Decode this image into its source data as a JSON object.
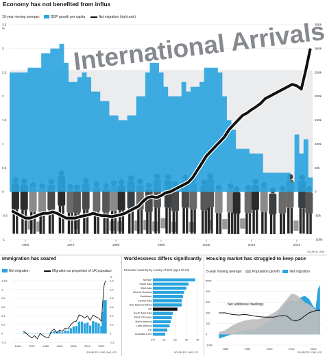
{
  "headline": "Economy has not benefited from influx",
  "main": {
    "legend_prefix": "10-year moving average:",
    "legend_gdp": "GDP growth per capita",
    "legend_migration": "Net migration (right axis)",
    "photo_text": "International Arrivals",
    "source": "SOURCE: ONS"
  },
  "colors": {
    "blue": "#2aa4de",
    "black": "#111111",
    "grey": "#bdbdbd",
    "label_bg": "#ffffff"
  },
  "panels": {
    "immigration": {
      "title": "Immigration has soared",
      "legend_net": "Net migration",
      "legend_prop": "Migration as proportion of UK populace",
      "source": "SOURCES: ONS, BoE, IFS"
    },
    "worklessness": {
      "title": "Worklessness differs significantly",
      "subtitle": "Economic inactivity by country of birth (aged 20-64)",
      "source": "SOURCES: ONS, IFS"
    },
    "housing": {
      "title": "Housing market has struggled to keep pace",
      "legend_prefix": "5-year moving average:",
      "legend_pop": "Population growth",
      "legend_net": "Net migration",
      "annotation": "Net additional dwellings",
      "source": "SOURCES: ONS, IFS"
    }
  },
  "chart_data": [
    {
      "type": "bar",
      "title": "",
      "x": [
        1957,
        1958,
        1959,
        1960,
        1961,
        1962,
        1963,
        1964,
        1965,
        1966,
        1967,
        1968,
        1969,
        1970,
        1971,
        1972,
        1973,
        1974,
        1975,
        1976,
        1977,
        1978,
        1979,
        1980,
        1981,
        1982,
        1983,
        1984,
        1985,
        1986,
        1987,
        1988,
        1989,
        1990,
        1991,
        1992,
        1993,
        1994,
        1995,
        1996,
        1997,
        1998,
        1999,
        2000,
        2001,
        2002,
        2003,
        2004,
        2005,
        2006,
        2007,
        2008,
        2009,
        2010,
        2011,
        2012,
        2013,
        2014,
        2015,
        2016,
        2017,
        2018,
        2019,
        2020,
        2021,
        2022,
        2023
      ],
      "series": [
        {
          "name": "GDP growth per capita",
          "axis": "left",
          "values": [
            2.5,
            2.5,
            2.5,
            2.5,
            2.6,
            2.6,
            2.6,
            2.9,
            2.9,
            3.0,
            3.0,
            3.1,
            2.7,
            2.3,
            2.3,
            2.4,
            2.5,
            2.4,
            2.1,
            2.1,
            1.9,
            1.9,
            1.6,
            1.6,
            1.5,
            1.5,
            1.6,
            1.6,
            2.0,
            2.0,
            2.5,
            2.7,
            2.7,
            2.5,
            2.2,
            2.0,
            2.0,
            2.0,
            2.3,
            2.1,
            2.2,
            2.2,
            2.3,
            2.6,
            2.6,
            2.6,
            2.5,
            2.0,
            1.5,
            1.3,
            0.9,
            0.9,
            0.9,
            0.8,
            0.8,
            0.8,
            0.4,
            0.4,
            0.4,
            0.4,
            0.4,
            0.4,
            0.2,
            1.2,
            0.8,
            1.1,
            0.3
          ]
        },
        {
          "name": "Net migration",
          "axis": "right",
          "values": [
            -40,
            -45,
            -50,
            -55,
            -55,
            -52,
            -48,
            -45,
            -45,
            -42,
            -45,
            -50,
            -55,
            -55,
            -55,
            -52,
            -50,
            -48,
            -45,
            -48,
            -50,
            -50,
            -52,
            -50,
            -48,
            -45,
            -40,
            -35,
            -30,
            -20,
            -12,
            -10,
            -12,
            -8,
            -2,
            0,
            5,
            10,
            15,
            20,
            30,
            45,
            60,
            75,
            85,
            95,
            105,
            115,
            130,
            140,
            150,
            160,
            165,
            172,
            178,
            185,
            195,
            200,
            205,
            210,
            215,
            220,
            225,
            222,
            215,
            255,
            300
          ]
        }
      ],
      "ylim_left": [
        -1,
        3.5
      ],
      "ylim_right": [
        -100,
        350
      ],
      "y_ticks_left": [
        "-1",
        "-0.5",
        "0",
        "0.5",
        "1",
        "1.5",
        "2",
        "2.5",
        "3",
        "3.5"
      ],
      "y_unit_left": "%",
      "y_ticks_right": [
        "-100k",
        "-50k",
        "0",
        "50k",
        "100k",
        "150k",
        "200k",
        "250k",
        "300k",
        "350k"
      ],
      "x_ticks": [
        "1960",
        "1970",
        "1980",
        "1990",
        "2000",
        "2010",
        "2020"
      ]
    },
    {
      "type": "bar",
      "title": "Immigration has soared",
      "x": [
        1964,
        1966,
        1968,
        1970,
        1972,
        1974,
        1976,
        1978,
        1980,
        1982,
        1984,
        1986,
        1988,
        1990,
        1992,
        1994,
        1996,
        1998,
        2000,
        2002,
        2004,
        2006,
        2008,
        2010,
        2012,
        2014,
        2016,
        2018,
        2020,
        2021,
        2022,
        2023
      ],
      "series": [
        {
          "name": "Net migration",
          "axis": "left",
          "values": [
            0.02,
            0.02,
            0.01,
            0.0,
            0.0,
            0.0,
            0.0,
            0.0,
            0.0,
            0.0,
            0.03,
            0.05,
            0.04,
            0.05,
            0.03,
            0.07,
            0.06,
            0.12,
            0.16,
            0.17,
            0.27,
            0.27,
            0.23,
            0.25,
            0.18,
            0.28,
            0.26,
            0.23,
            0.17,
            0.49,
            0.75,
            0.76
          ]
        },
        {
          "name": "Migration as proportion of UK populace",
          "axis": "right",
          "values": [
            0.05,
            0.0,
            -0.05,
            -0.1,
            -0.05,
            -0.12,
            0.0,
            -0.05,
            -0.08,
            -0.1,
            0.05,
            0.1,
            0.02,
            0.08,
            0.05,
            0.12,
            0.1,
            0.2,
            0.26,
            0.28,
            0.42,
            0.4,
            0.35,
            0.4,
            0.3,
            0.42,
            0.38,
            0.35,
            0.28,
            0.72,
            1.1,
            1.2
          ]
        }
      ],
      "ylim_left": [
        -0.2,
        1.2
      ],
      "ylim_right": [
        -0.2,
        1.2
      ],
      "y_ticks_left": [
        "1.2m",
        "1",
        "0.8",
        "0.6",
        "0.4",
        "0.2",
        "0",
        "-0.2"
      ],
      "y_ticks_right": [
        "1.2",
        "1.0",
        "0.8",
        "0.6",
        "0.4",
        "0.2",
        "0",
        "-0.2"
      ],
      "y_unit_right": "%",
      "x_ticks": [
        "1960",
        "1970",
        "1980",
        "1990",
        "2000",
        "2010",
        "2020"
      ]
    },
    {
      "type": "bar",
      "title": "Worklessness differs significantly",
      "orientation": "horizontal",
      "categories": [
        "MENA*",
        "South Asia",
        "East Asia",
        "Rest of Oceania",
        "Caribbean",
        "Central Asia",
        "Sub-Saharan Africa",
        "UK",
        "South East Asia",
        "Rest of Europe",
        "North America",
        "Latin America",
        "EU",
        "Australia & NZ"
      ],
      "values": [
        38,
        32,
        30,
        28,
        27,
        26,
        26,
        22,
        18,
        17,
        16,
        15,
        13,
        11
      ],
      "highlight": "UK",
      "xlim": [
        0,
        40
      ],
      "x_ticks": [
        "0%",
        "10",
        "20",
        "30",
        "40"
      ]
    },
    {
      "type": "area",
      "title": "Housing market has struggled to keep pace",
      "x": [
        1977,
        1980,
        1983,
        1986,
        1989,
        1992,
        1995,
        1998,
        2000,
        2002,
        2004,
        2006,
        2008,
        2010,
        2012,
        2014,
        2016,
        2018,
        2020,
        2021,
        2022,
        2023
      ],
      "series": [
        {
          "name": "Population growth",
          "values": [
            20,
            40,
            80,
            110,
            130,
            140,
            140,
            160,
            180,
            200,
            230,
            280,
            330,
            380,
            370,
            340,
            300,
            280,
            250,
            230,
            220,
            210
          ]
        },
        {
          "name": "Net migration",
          "values": [
            -40,
            -20,
            0,
            20,
            40,
            40,
            60,
            100,
            130,
            160,
            200,
            260,
            300,
            320,
            300,
            340,
            360,
            330,
            260,
            240,
            420,
            460
          ]
        },
        {
          "name": "Net additional dwellings",
          "values": [
            200,
            200,
            185,
            180,
            185,
            175,
            165,
            160,
            160,
            160,
            170,
            175,
            170,
            135,
            125,
            140,
            170,
            200,
            215,
            220,
            225,
            225
          ]
        }
      ],
      "ylim": [
        -100,
        500
      ],
      "y_ticks": [
        "500k",
        "400",
        "300",
        "200",
        "100",
        "0",
        "-100k"
      ],
      "x_ticks": [
        "1980",
        "1990",
        "2000",
        "2010",
        "2020"
      ]
    }
  ]
}
